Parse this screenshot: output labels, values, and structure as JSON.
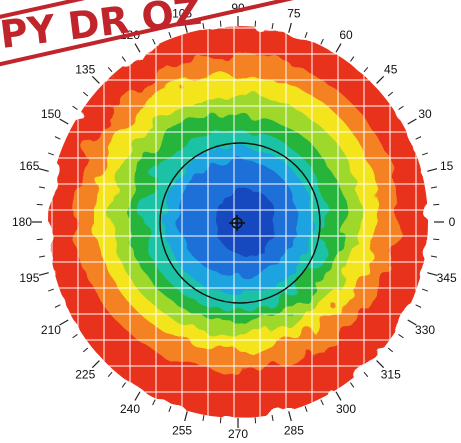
{
  "stamp": {
    "text": "PY DR OZ"
  },
  "map": {
    "center_marker": "crosshair-icon",
    "angle_labels": [
      {
        "deg": 0,
        "text": "0"
      },
      {
        "deg": 15,
        "text": "15"
      },
      {
        "deg": 30,
        "text": "30"
      },
      {
        "deg": 45,
        "text": "45"
      },
      {
        "deg": 60,
        "text": "60"
      },
      {
        "deg": 75,
        "text": "75"
      },
      {
        "deg": 90,
        "text": "90"
      },
      {
        "deg": 105,
        "text": "105"
      },
      {
        "deg": 120,
        "text": "120"
      },
      {
        "deg": 135,
        "text": "135"
      },
      {
        "deg": 150,
        "text": "150"
      },
      {
        "deg": 165,
        "text": "165"
      },
      {
        "deg": 180,
        "text": "180"
      },
      {
        "deg": 195,
        "text": "195"
      },
      {
        "deg": 210,
        "text": "210"
      },
      {
        "deg": 225,
        "text": "225"
      },
      {
        "deg": 240,
        "text": "240"
      },
      {
        "deg": 255,
        "text": "255"
      },
      {
        "deg": 270,
        "text": "270"
      },
      {
        "deg": 285,
        "text": "285"
      },
      {
        "deg": 300,
        "text": "300"
      },
      {
        "deg": 315,
        "text": "315"
      },
      {
        "deg": 330,
        "text": "330"
      },
      {
        "deg": 345,
        "text": "345"
      }
    ],
    "colors": {
      "outer": "#e8301e",
      "orange": "#f58220",
      "yellow": "#f4e41e",
      "light_green": "#9ed82a",
      "green": "#27b43a",
      "teal": "#1fc2a6",
      "cyan": "#1aa3e0",
      "blue": "#1d6fd8",
      "deep_blue": "#1548c0",
      "grid": "#ffffff",
      "ring": "#111111"
    }
  }
}
